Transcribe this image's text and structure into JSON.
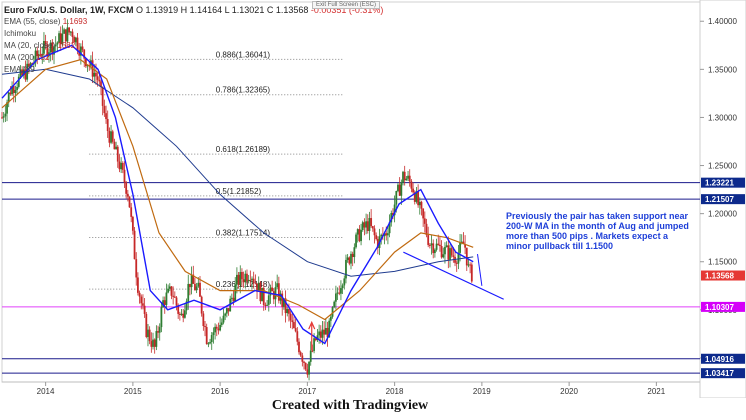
{
  "legend": {
    "symbol": "Euro Fx/U.S. Dollar, 1W, FXCM",
    "ohlc": "O 1.13919  H 1.14164  L 1.13021  C 1.13568",
    "change": "-0.00351 (-0.31%)",
    "indicators": [
      {
        "label": "EMA (55, close)",
        "value": "1.1693"
      },
      {
        "label": "Ichimoku",
        "value": ""
      },
      {
        "label": "MA (20, close)",
        "value": "1582"
      },
      {
        "label": "MA (200",
        "value": "152"
      },
      {
        "label": "EMA (89",
        "value": ""
      }
    ]
  },
  "exit_fullscreen": "Exit Full Screen (ESC)",
  "annotation": "Previously the pair has taken support near 200-W MA in the month of Aug and jumped more than 500 pips . Markets expect a minor pullback till 1.1500",
  "footer": "Created with Tradingview",
  "colors": {
    "candle_up": "#2e7d32",
    "candle_down": "#c62828",
    "ma20": "#1a1aff",
    "ema55": "#c06a10",
    "ma200": "#1f3b8f",
    "horizontal_line": "#1a1a8c",
    "magenta_line": "#e040fb",
    "tag_blue": "#0d2a8c",
    "tag_red": "#e53935",
    "tag_magenta": "#d500f9"
  },
  "chart_data": {
    "type": "candlestick",
    "x_range": [
      "2013-06",
      "2021-06"
    ],
    "x_ticks": [
      "2014",
      "2015",
      "2016",
      "2017",
      "2018",
      "2019",
      "2020",
      "2021"
    ],
    "ylim": [
      1.025,
      1.42
    ],
    "y_ticks": [
      "1.40000",
      "1.35000",
      "1.30000",
      "1.25000",
      "1.20000",
      "1.15000",
      "1.10000",
      "1.05000"
    ],
    "price_tags": [
      {
        "label": "1.23221",
        "value": 1.23221,
        "color": "#0d2a8c"
      },
      {
        "label": "1.21507",
        "value": 1.21507,
        "color": "#0d2a8c"
      },
      {
        "label": "1.13568",
        "value": 1.13568,
        "color": "#e53935"
      },
      {
        "label": "1.10307",
        "value": 1.10307,
        "color": "#d500f9"
      },
      {
        "label": "1.04916",
        "value": 1.04916,
        "color": "#0d2a8c"
      },
      {
        "label": "1.03417",
        "value": 1.03417,
        "color": "#0d2a8c"
      }
    ],
    "fib_levels": [
      {
        "label": "0.886(1.36041)",
        "value": 1.36041
      },
      {
        "label": "0.786(1.32365)",
        "value": 1.32365
      },
      {
        "label": "0.618(1.26189)",
        "value": 1.26189
      },
      {
        "label": "0.5(1.21852)",
        "value": 1.21852
      },
      {
        "label": "0.382(1.17514)",
        "value": 1.17514
      },
      {
        "label": "0.236(1.12148)",
        "value": 1.12148
      }
    ],
    "price_path": [
      [
        2013.5,
        1.3
      ],
      [
        2013.6,
        1.33
      ],
      [
        2013.8,
        1.35
      ],
      [
        2013.95,
        1.37
      ],
      [
        2014.1,
        1.375
      ],
      [
        2014.2,
        1.385
      ],
      [
        2014.3,
        1.39
      ],
      [
        2014.4,
        1.37
      ],
      [
        2014.5,
        1.355
      ],
      [
        2014.6,
        1.34
      ],
      [
        2014.7,
        1.29
      ],
      [
        2014.85,
        1.25
      ],
      [
        2014.95,
        1.22
      ],
      [
        2015.05,
        1.13
      ],
      [
        2015.15,
        1.08
      ],
      [
        2015.25,
        1.06
      ],
      [
        2015.35,
        1.11
      ],
      [
        2015.45,
        1.12
      ],
      [
        2015.55,
        1.09
      ],
      [
        2015.65,
        1.13
      ],
      [
        2015.75,
        1.12
      ],
      [
        2015.85,
        1.07
      ],
      [
        2015.95,
        1.08
      ],
      [
        2016.05,
        1.09
      ],
      [
        2016.2,
        1.13
      ],
      [
        2016.35,
        1.14
      ],
      [
        2016.5,
        1.11
      ],
      [
        2016.65,
        1.12
      ],
      [
        2016.8,
        1.09
      ],
      [
        2016.95,
        1.05
      ],
      [
        2017.0,
        1.04
      ],
      [
        2017.1,
        1.07
      ],
      [
        2017.25,
        1.08
      ],
      [
        2017.35,
        1.12
      ],
      [
        2017.5,
        1.16
      ],
      [
        2017.6,
        1.18
      ],
      [
        2017.7,
        1.19
      ],
      [
        2017.8,
        1.17
      ],
      [
        2017.9,
        1.18
      ],
      [
        2018.0,
        1.21
      ],
      [
        2018.1,
        1.24
      ],
      [
        2018.2,
        1.23
      ],
      [
        2018.3,
        1.2
      ],
      [
        2018.4,
        1.17
      ],
      [
        2018.5,
        1.165
      ],
      [
        2018.6,
        1.16
      ],
      [
        2018.7,
        1.155
      ],
      [
        2018.8,
        1.17
      ],
      [
        2018.85,
        1.14
      ],
      [
        2018.9,
        1.136
      ]
    ],
    "ma20_path": [
      [
        2013.5,
        1.32
      ],
      [
        2013.9,
        1.36
      ],
      [
        2014.3,
        1.375
      ],
      [
        2014.6,
        1.35
      ],
      [
        2014.8,
        1.3
      ],
      [
        2015.0,
        1.22
      ],
      [
        2015.2,
        1.12
      ],
      [
        2015.4,
        1.1
      ],
      [
        2015.7,
        1.11
      ],
      [
        2016.0,
        1.1
      ],
      [
        2016.4,
        1.12
      ],
      [
        2016.7,
        1.115
      ],
      [
        2016.95,
        1.08
      ],
      [
        2017.2,
        1.065
      ],
      [
        2017.5,
        1.12
      ],
      [
        2017.8,
        1.165
      ],
      [
        2018.05,
        1.21
      ],
      [
        2018.3,
        1.225
      ],
      [
        2018.5,
        1.19
      ],
      [
        2018.7,
        1.16
      ],
      [
        2018.9,
        1.15
      ]
    ],
    "ema55_path": [
      [
        2013.5,
        1.31
      ],
      [
        2014.0,
        1.35
      ],
      [
        2014.4,
        1.36
      ],
      [
        2014.7,
        1.34
      ],
      [
        2015.0,
        1.27
      ],
      [
        2015.3,
        1.18
      ],
      [
        2015.6,
        1.14
      ],
      [
        2016.0,
        1.12
      ],
      [
        2016.5,
        1.12
      ],
      [
        2016.9,
        1.105
      ],
      [
        2017.2,
        1.09
      ],
      [
        2017.6,
        1.12
      ],
      [
        2018.0,
        1.16
      ],
      [
        2018.3,
        1.18
      ],
      [
        2018.6,
        1.175
      ],
      [
        2018.9,
        1.165
      ]
    ],
    "ma200_path": [
      [
        2013.5,
        1.345
      ],
      [
        2014.0,
        1.35
      ],
      [
        2014.5,
        1.34
      ],
      [
        2015.0,
        1.31
      ],
      [
        2015.5,
        1.27
      ],
      [
        2016.0,
        1.22
      ],
      [
        2016.5,
        1.18
      ],
      [
        2017.0,
        1.15
      ],
      [
        2017.5,
        1.135
      ],
      [
        2018.0,
        1.14
      ],
      [
        2018.5,
        1.15
      ],
      [
        2018.9,
        1.155
      ]
    ],
    "trendline": [
      [
        2018.1,
        1.16
      ],
      [
        2019.25,
        1.111
      ]
    ]
  }
}
